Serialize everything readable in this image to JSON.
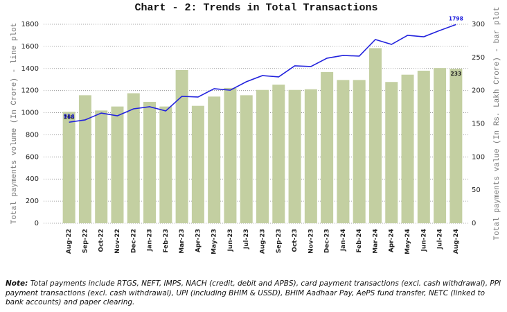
{
  "chart_data": {
    "type": "bar_line",
    "title": "Chart - 2: Trends in Total Transactions",
    "y_label": "Total payments volume (In Crore) - line plot",
    "y2_label": "Total payments value (In Rs. Lakh Crore) - bar plot",
    "categories": [
      "Aug-22",
      "Sep-22",
      "Oct-22",
      "Nov-22",
      "Dec-22",
      "Jan-23",
      "Feb-23",
      "Mar-23",
      "Apr-23",
      "May-23",
      "Jun-23",
      "Jul-23",
      "Aug-23",
      "Sep-23",
      "Oct-23",
      "Nov-23",
      "Dec-23",
      "Jan-24",
      "Feb-24",
      "Mar-24",
      "Apr-24",
      "May-24",
      "Jun-24",
      "Jul-24",
      "Aug-24"
    ],
    "series": [
      {
        "name": "Total payments value",
        "kind": "bar",
        "axis": "y2",
        "color": "#c3cfa1",
        "values": [
          168,
          193,
          170,
          176,
          196,
          183,
          176,
          231,
          177,
          191,
          204,
          193,
          201,
          209,
          201,
          202,
          228,
          216,
          216,
          264,
          213,
          224,
          230,
          234,
          233
        ]
      },
      {
        "name": "Total payments volume",
        "kind": "line",
        "axis": "y",
        "color": "#2222dd",
        "values": [
          914,
          935,
          997,
          972,
          1035,
          1054,
          1016,
          1148,
          1142,
          1217,
          1204,
          1280,
          1336,
          1324,
          1424,
          1418,
          1493,
          1518,
          1512,
          1662,
          1618,
          1700,
          1687,
          1744,
          1798
        ]
      }
    ],
    "data_labels": "ends",
    "ylim": [
      0,
      1800
    ],
    "yticks": [
      0,
      200,
      400,
      600,
      800,
      1000,
      1200,
      1400,
      1600,
      1800
    ],
    "y2lim": [
      0,
      300
    ],
    "y2ticks": [
      0,
      50,
      100,
      150,
      200,
      250,
      300
    ],
    "grid": true
  },
  "note_label": "Note:",
  "note": "Total payments include RTGS, NEFT, IMPS, NACH (credit, debit and APBS), card payment transactions (excl. cash withdrawal), PPI payment transactions (excl. cash withdrawal), UPI (including BHIM & USSD), BHIM Aadhaar Pay, AePS fund transfer, NETC (linked to bank accounts) and paper clearing."
}
